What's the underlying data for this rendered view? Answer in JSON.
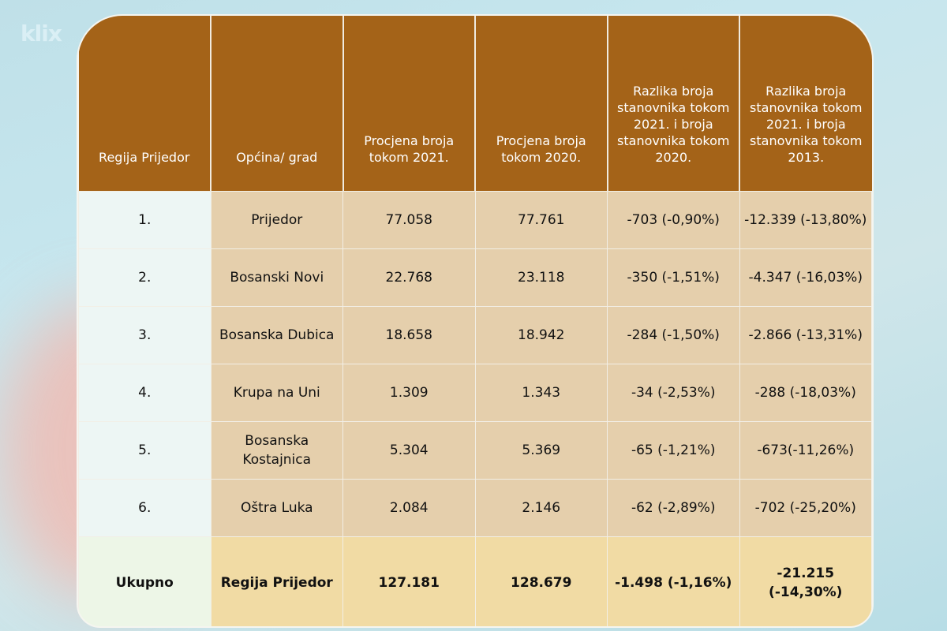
{
  "logo": "klix",
  "chart_data": {
    "type": "table",
    "columns": [
      "Regija Prijedor",
      "Općina/ grad",
      "Procjena broja tokom 2021.",
      "Procjena broja tokom 2020.",
      "Razlika broja stanovnika tokom 2021. i broja stanovnika tokom 2020.",
      "Razlika broja stanovnika tokom 2021. i broja stanovnika tokom 2013."
    ],
    "rows": [
      [
        "1.",
        "Prijedor",
        "77.058",
        "77.761",
        "-703 (-0,90%)",
        "-12.339 (-13,80%)"
      ],
      [
        "2.",
        "Bosanski Novi",
        "22.768",
        "23.118",
        "-350 (-1,51%)",
        "-4.347 (-16,03%)"
      ],
      [
        "3.",
        "Bosanska Dubica",
        "18.658",
        "18.942",
        "-284 (-1,50%)",
        "-2.866 (-13,31%)"
      ],
      [
        "4.",
        "Krupa na Uni",
        "1.309",
        "1.343",
        "-34 (-2,53%)",
        "-288 (-18,03%)"
      ],
      [
        "5.",
        "Bosanska Kostajnica",
        "5.304",
        "5.369",
        "-65 (-1,21%)",
        "-673(-11,26%)"
      ],
      [
        "6.",
        "Oštra Luka",
        "2.084",
        "2.146",
        "-62 (-2,89%)",
        "-702 (-25,20%)"
      ]
    ],
    "total": [
      "Ukupno",
      "Regija Prijedor",
      "127.181",
      "128.679",
      "-1.498 (-1,16%)",
      "-21.215 (-14,30%)"
    ]
  },
  "colors": {
    "header": "#A46318"
  }
}
